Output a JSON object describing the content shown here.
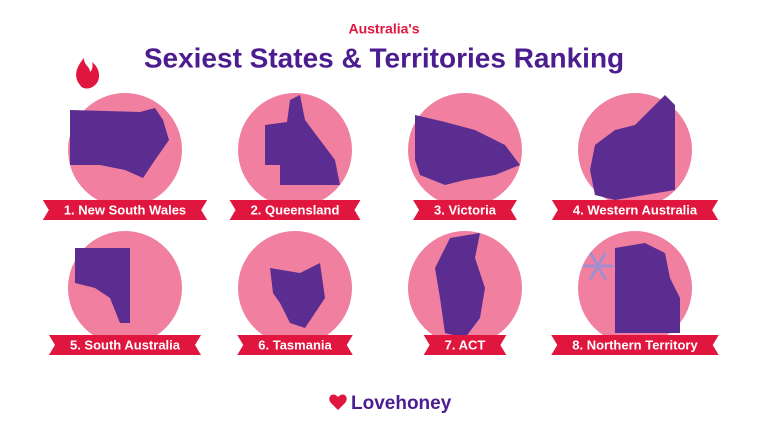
{
  "header": {
    "kicker": "Australia's",
    "title": "Sexiest States & Territories Ranking"
  },
  "items": [
    {
      "label": "1. New South Wales"
    },
    {
      "label": "2. Queensland"
    },
    {
      "label": "3. Victoria"
    },
    {
      "label": "4. Western Australia"
    },
    {
      "label": "5. South Australia"
    },
    {
      "label": "6. Tasmania"
    },
    {
      "label": "7. ACT"
    },
    {
      "label": "8. Northern Territory"
    }
  ],
  "footer": {
    "brand": "Lovehoney"
  }
}
